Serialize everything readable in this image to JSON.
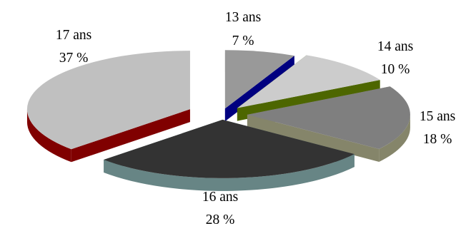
{
  "chart_data": {
    "type": "pie",
    "style": "3d-exploded",
    "categories": [
      "13 ans",
      "14 ans",
      "15 ans",
      "16 ans",
      "17 ans"
    ],
    "values": [
      7,
      10,
      18,
      28,
      37
    ],
    "value_labels": [
      "7 %",
      "10 %",
      "18 %",
      "28 %",
      "37 %"
    ],
    "top_colors": [
      "#999999",
      "#cccccc",
      "#7f7f7f",
      "#333333",
      "#c0c0c0"
    ],
    "side_colors": [
      "#000080",
      "#4d6600",
      "#85856a",
      "#678585",
      "#800000"
    ],
    "title": "",
    "legend": "none"
  }
}
